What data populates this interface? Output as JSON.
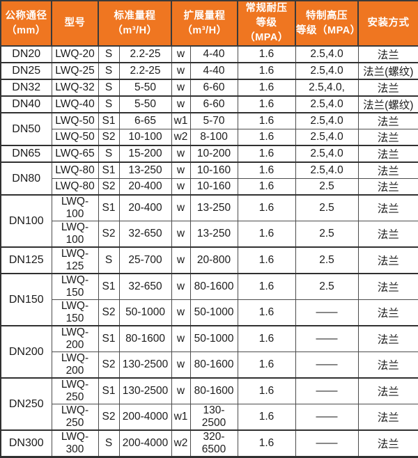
{
  "colors": {
    "header_bg": "#EF7621",
    "header_text": "#FFFFFF",
    "border_dark": "#303030",
    "border_light": "#4B4B4B",
    "row_bg": "#FFFFFF",
    "text": "#1C1C1C"
  },
  "header": {
    "cols": [
      {
        "label": "公称通径\n（mm）"
      },
      {
        "label": "型号"
      },
      {
        "label": "标准量程\n（m³/H）"
      },
      {
        "label": "扩展量程\n（m³/H）"
      },
      {
        "label": "常规耐压\n等级（MPA）"
      },
      {
        "label": "特制高压\n等级（MPA）"
      },
      {
        "label": "安装方式"
      }
    ]
  },
  "table": {
    "groups": [
      {
        "dn": "DN20",
        "rows": [
          {
            "model": "LWQ-20",
            "s": "S",
            "std": "2.2-25",
            "w": "w",
            "ext": "4-40",
            "reg": "1.6",
            "hi": "2.5,4.0",
            "mount": "法兰"
          }
        ]
      },
      {
        "dn": "DN25",
        "rows": [
          {
            "model": "LWQ-25",
            "s": "S",
            "std": "2.2-25",
            "w": "w",
            "ext": "4-40",
            "reg": "1.6",
            "hi": "2.5,4.0",
            "mount": "法兰(螺纹)"
          }
        ]
      },
      {
        "dn": "DN32",
        "rows": [
          {
            "model": "LWQ-32",
            "s": "S",
            "std": "5-50",
            "w": "w",
            "ext": "6-60",
            "reg": "1.6",
            "hi": "2.5,4.0,",
            "mount": "法兰"
          }
        ]
      },
      {
        "dn": "DN40",
        "rows": [
          {
            "model": "LWQ-40",
            "s": "S",
            "std": "5-50",
            "w": "w",
            "ext": "6-60",
            "reg": "1.6",
            "hi": "2.5,4.0",
            "mount": "法兰(螺纹)"
          }
        ]
      },
      {
        "dn": "DN50",
        "rows": [
          {
            "model": "LWQ-50",
            "s": "S1",
            "std": "6-65",
            "w": "w1",
            "ext": "5-70",
            "reg": "1.6",
            "hi": "2.5,4.0",
            "mount": "法兰"
          },
          {
            "model": "LWQ-50",
            "s": "S2",
            "std": "10-100",
            "w": "w2",
            "ext": "8-100",
            "reg": "1.6",
            "hi": "2.5,4.0",
            "mount": "法兰"
          }
        ]
      },
      {
        "dn": "DN65",
        "rows": [
          {
            "model": "LWQ-65",
            "s": "S",
            "std": "15-200",
            "w": "w",
            "ext": "10-200",
            "reg": "1.6",
            "hi": "2.5,4.0",
            "mount": "法兰"
          }
        ]
      },
      {
        "dn": "DN80",
        "rows": [
          {
            "model": "LWQ-80",
            "s": "S1",
            "std": "13-250",
            "w": "w",
            "ext": "10-160",
            "reg": "1.6",
            "hi": "2.5,4.0",
            "mount": "法兰"
          },
          {
            "model": "LWQ-80",
            "s": "S2",
            "std": "20-400",
            "w": "w",
            "ext": "10-160",
            "reg": "1.6",
            "hi": "2.5",
            "mount": "法兰"
          }
        ]
      },
      {
        "dn": "DN100",
        "rows": [
          {
            "model": "LWQ-100",
            "s": "S1",
            "std": "20-400",
            "w": "w",
            "ext": "13-250",
            "reg": "1.6",
            "hi": "2.5",
            "mount": "法兰"
          },
          {
            "model": "LWQ-100",
            "s": "S2",
            "std": "32-650",
            "w": "w",
            "ext": "13-250",
            "reg": "1.6",
            "hi": "2.5",
            "mount": "法兰"
          }
        ]
      },
      {
        "dn": "DN125",
        "rows": [
          {
            "model": "LWQ-125",
            "s": "S",
            "std": "25-700",
            "w": "w",
            "ext": "20-800",
            "reg": "1.6",
            "hi": "2.5",
            "mount": "法兰"
          }
        ]
      },
      {
        "dn": "DN150",
        "rows": [
          {
            "model": "LWQ-150",
            "s": "S1",
            "std": "32-650",
            "w": "w",
            "ext": "80-1600",
            "reg": "1.6",
            "hi": "2.5",
            "mount": "法兰"
          },
          {
            "model": "LWQ-150",
            "s": "S2",
            "std": "50-1000",
            "w": "w",
            "ext": "50-1000",
            "reg": "1.6",
            "hi": "——",
            "mount": "法兰"
          }
        ]
      },
      {
        "dn": "DN200",
        "rows": [
          {
            "model": "LWQ-200",
            "s": "S1",
            "std": "80-1600",
            "w": "w",
            "ext": "50-1000",
            "reg": "1.6",
            "hi": "——",
            "mount": "法兰"
          },
          {
            "model": "LWQ-200",
            "s": "S2",
            "std": "130-2500",
            "w": "w",
            "ext": "80-1600",
            "reg": "1.6",
            "hi": "——",
            "mount": "法兰"
          }
        ]
      },
      {
        "dn": "DN250",
        "rows": [
          {
            "model": "LWQ-250",
            "s": "S1",
            "std": "130-2500",
            "w": "w",
            "ext": "80-1600",
            "reg": "1.6",
            "hi": "——",
            "mount": "法兰"
          },
          {
            "model": "LWQ-250",
            "s": "S2",
            "std": "200-4000",
            "w": "w1",
            "ext": "130-2500",
            "reg": "1.6",
            "hi": "——",
            "mount": "法兰"
          }
        ]
      },
      {
        "dn": "DN300",
        "rows": [
          {
            "model": "LWQ-300",
            "s": "S",
            "std": "200-4000",
            "w": "w2",
            "ext": "320-6500",
            "reg": "1.6",
            "hi": "——",
            "mount": "法兰"
          }
        ]
      }
    ]
  }
}
